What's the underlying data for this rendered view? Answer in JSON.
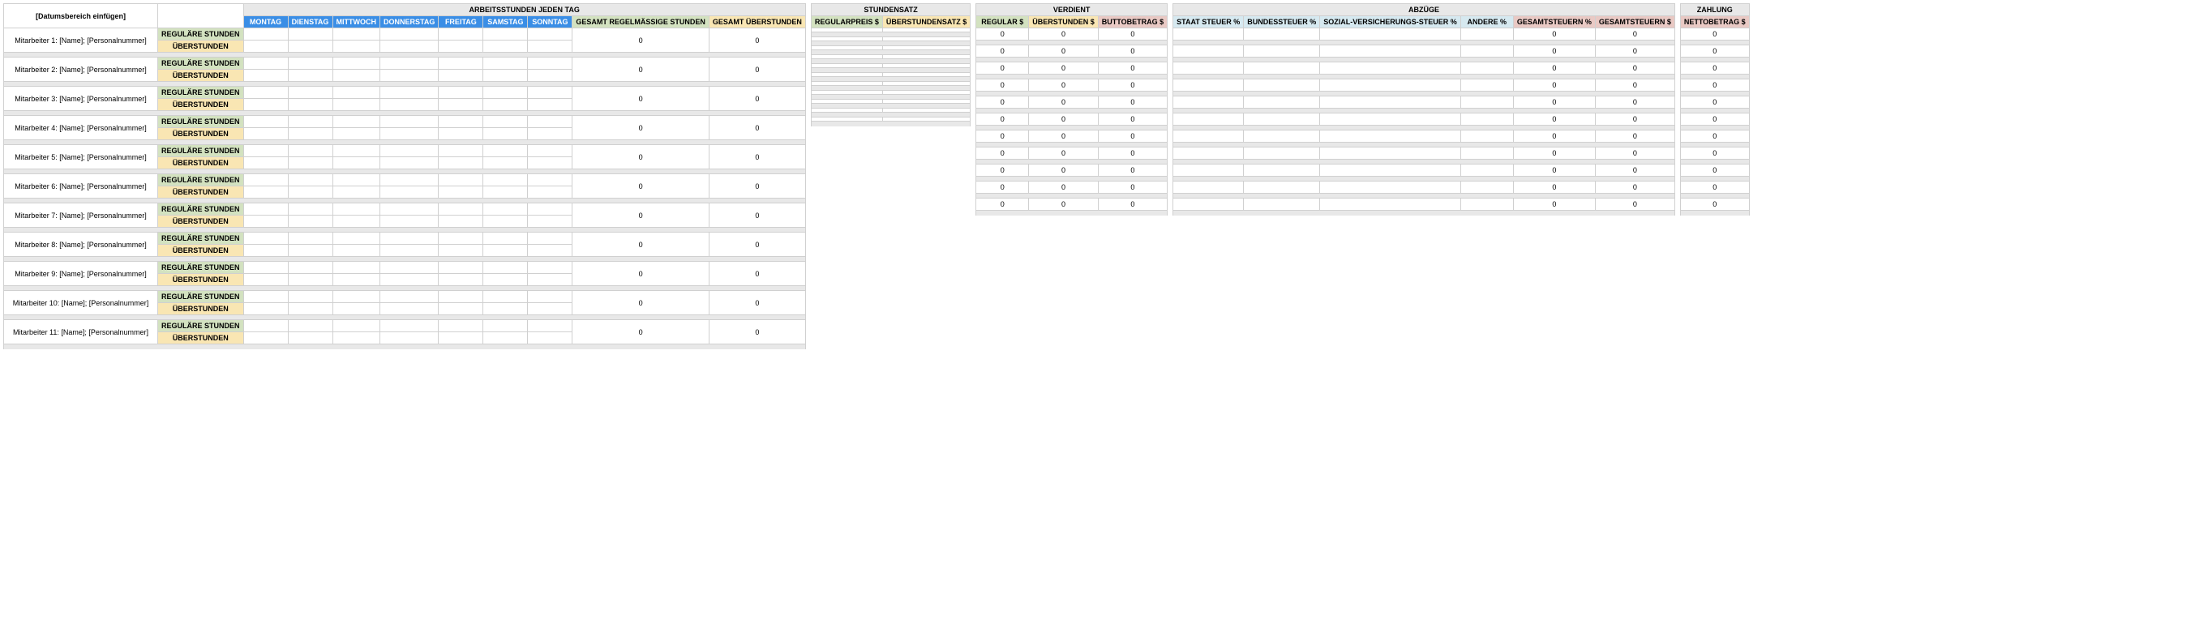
{
  "colors": {
    "group_bg": "#e8e8e8",
    "day_bg": "#3a8ee6",
    "green": "#d3e2c0",
    "yellow": "#f9e6b3",
    "pink": "#e9c9c4",
    "ltblue": "#d6e9f0",
    "border": "#d0d0d0"
  },
  "dateRange": "[Datumsbereich einfügen]",
  "rowLabels": {
    "regular": "REGULÄRE STUNDEN",
    "overtime": "ÜBERSTUNDEN"
  },
  "groups": {
    "hours": {
      "title": "ARBEITSSTUNDEN JEDEN TAG",
      "days": [
        "MONTAG",
        "DIENSTAG",
        "MITTWOCH",
        "DONNERSTAG",
        "FREITAG",
        "SAMSTAG",
        "SONNTAG"
      ],
      "totals": [
        "GESAMT REGELMÄSSIGE STUNDEN",
        "GESAMT ÜBERSTUNDEN"
      ]
    },
    "rate": {
      "title": "STUNDENSATZ",
      "cols": [
        "REGULARPREIS $",
        "ÜBERSTUNDENSATZ $"
      ]
    },
    "earned": {
      "title": "VERDIENT",
      "cols": [
        "REGULAR $",
        "ÜBERSTUNDEN $",
        "BUTTOBETRAG $"
      ]
    },
    "deduct": {
      "title": "ABZÜGE",
      "cols": [
        "STAAT STEUER %",
        "BUNDESSTEUER %",
        "SOZIAL-VERSICHERUNGS-STEUER %",
        "ANDERE %",
        "GESAMTSTEUERN %",
        "GESAMTSTEUERN $"
      ]
    },
    "pay": {
      "title": "ZAHLUNG",
      "cols": [
        "NETTOBETRAG $"
      ]
    }
  },
  "employees": [
    {
      "name": "Mitarbeiter 1: [Name]; [Personalnummer]"
    },
    {
      "name": "Mitarbeiter 2: [Name]; [Personalnummer]"
    },
    {
      "name": "Mitarbeiter 3: [Name]; [Personalnummer]"
    },
    {
      "name": "Mitarbeiter 4: [Name]; [Personalnummer]"
    },
    {
      "name": "Mitarbeiter 5: [Name]; [Personalnummer]"
    },
    {
      "name": "Mitarbeiter 6: [Name]; [Personalnummer]"
    },
    {
      "name": "Mitarbeiter 7: [Name]; [Personalnummer]"
    },
    {
      "name": "Mitarbeiter 8: [Name]; [Personalnummer]"
    },
    {
      "name": "Mitarbeiter 9: [Name]; [Personalnummer]"
    },
    {
      "name": "Mitarbeiter 10: [Name]; [Personalnummer]"
    },
    {
      "name": "Mitarbeiter 11: [Name]; [Personalnummer]"
    }
  ],
  "zeros": {
    "hoursTotals": [
      "0",
      "0"
    ],
    "earned": [
      "0",
      "0",
      "0"
    ],
    "deductTotals": [
      "0",
      "0"
    ],
    "pay": [
      "0"
    ]
  }
}
